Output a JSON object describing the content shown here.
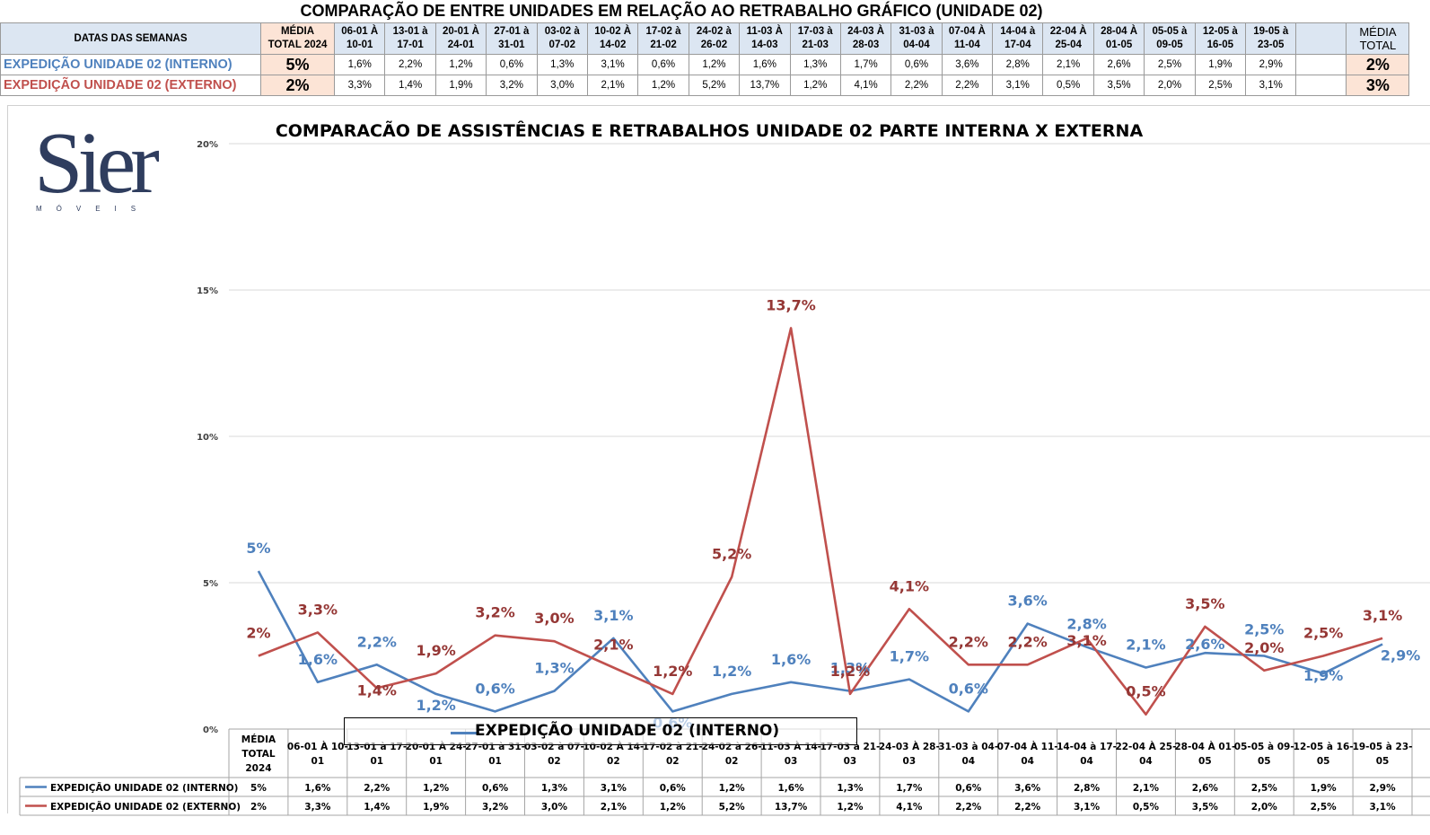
{
  "page_title": "COMPARAÇÃO DE ENTRE UNIDADES EM RELAÇÃO AO RETRABALHO GRÁFICO (UNIDADE 02)",
  "top_table": {
    "header_label": "DATAS DAS SEMANAS",
    "avg_header_lines": [
      "MÉDIA",
      "TOTAL 2024"
    ],
    "weeks": [
      [
        "06-01 À",
        "10-01"
      ],
      [
        "13-01 à",
        "17-01"
      ],
      [
        "20-01 À",
        "24-01"
      ],
      [
        "27-01 à",
        "31-01"
      ],
      [
        "03-02 à",
        "07-02"
      ],
      [
        "10-02 À",
        "14-02"
      ],
      [
        "17-02 à",
        "21-02"
      ],
      [
        "24-02 à",
        "26-02"
      ],
      [
        "11-03 À",
        "14-03"
      ],
      [
        "17-03 à",
        "21-03"
      ],
      [
        "24-03 À",
        "28-03"
      ],
      [
        "31-03 à",
        "04-04"
      ],
      [
        "07-04 À",
        "11-04"
      ],
      [
        "14-04 à",
        "17-04"
      ],
      [
        "22-04 À",
        "25-04"
      ],
      [
        "28-04 À",
        "01-05"
      ],
      [
        "05-05 à",
        "09-05"
      ],
      [
        "12-05 à",
        "16-05"
      ],
      [
        "19-05 à",
        "23-05"
      ]
    ],
    "total_header_lines": [
      "MÉDIA",
      "TOTAL"
    ],
    "rows": [
      {
        "label": "EXPEDIÇÃO UNIDADE 02 (INTERNO)",
        "avg": "5%",
        "values": [
          "1,6%",
          "2,2%",
          "1,2%",
          "0,6%",
          "1,3%",
          "3,1%",
          "0,6%",
          "1,2%",
          "1,6%",
          "1,3%",
          "1,7%",
          "0,6%",
          "3,6%",
          "2,8%",
          "2,1%",
          "2,6%",
          "2,5%",
          "1,9%",
          "2,9%"
        ],
        "total": "2%"
      },
      {
        "label": "EXPEDIÇÃO UNIDADE 02 (EXTERNO)",
        "avg": "2%",
        "values": [
          "3,3%",
          "1,4%",
          "1,9%",
          "3,2%",
          "3,0%",
          "2,1%",
          "1,2%",
          "5,2%",
          "13,7%",
          "1,2%",
          "4,1%",
          "2,2%",
          "2,2%",
          "3,1%",
          "0,5%",
          "3,5%",
          "2,0%",
          "2,5%",
          "3,1%"
        ],
        "total": "3%"
      }
    ]
  },
  "logo": {
    "name": "Sier",
    "subtitle": "MÓVEIS"
  },
  "legend_label": "EXPEDIÇÃO UNIDADE 02 (INTERNO)",
  "chart_data": {
    "type": "line",
    "title": "COMPARACÃO DE ASSISTÊNCIAS E RETRABALHOS UNIDADE 02 PARTE INTERNA X EXTERNA",
    "categories": [
      "MÉDIA TOTAL 2024",
      "06-01 À 10-01",
      "13-01 à 17-01",
      "20-01 À 24-01",
      "27-01 à 31-01",
      "03-02 à 07-02",
      "10-02 À 14-02",
      "17-02 à 21-02",
      "24-02 à 26-02",
      "11-03 À 14-03",
      "17-03 à 21-03",
      "24-03 À 28-03",
      "31-03 à 04-04",
      "07-04 À 11-04",
      "14-04 à 17-04",
      "22-04 À 25-04",
      "28-04 À 01-05",
      "05-05 à 09-05",
      "12-05 à 16-05",
      "19-05 à 23-05"
    ],
    "category_lines": [
      [
        "MÉDIA",
        "TOTAL",
        "2024"
      ],
      [
        "06-01 À 10-",
        "01"
      ],
      [
        "13-01 à 17-",
        "01"
      ],
      [
        "20-01 À 24-",
        "01"
      ],
      [
        "27-01 à 31-",
        "01"
      ],
      [
        "03-02 à 07-",
        "02"
      ],
      [
        "10-02 À 14-",
        "02"
      ],
      [
        "17-02 à 21-",
        "02"
      ],
      [
        "24-02 à 26-",
        "02"
      ],
      [
        "11-03 À 14-",
        "03"
      ],
      [
        "17-03 à 21-",
        "03"
      ],
      [
        "24-03 À 28-",
        "03"
      ],
      [
        "31-03 à 04-",
        "04"
      ],
      [
        "07-04 À 11-",
        "04"
      ],
      [
        "14-04 à 17-",
        "04"
      ],
      [
        "22-04 À 25-",
        "04"
      ],
      [
        "28-04 À 01-",
        "05"
      ],
      [
        "05-05 à 09-",
        "05"
      ],
      [
        "12-05 à 16-",
        "05"
      ],
      [
        "19-05 à 23-",
        "05"
      ]
    ],
    "series": [
      {
        "name": "EXPEDIÇÃO UNIDADE 02 (INTERNO)",
        "color": "#4f81bd",
        "label_color": "#4f81bd",
        "values": [
          5.4,
          1.6,
          2.2,
          1.2,
          0.6,
          1.3,
          3.1,
          0.6,
          1.2,
          1.6,
          1.3,
          1.7,
          0.6,
          3.6,
          2.8,
          2.1,
          2.6,
          2.5,
          1.9,
          2.9
        ],
        "labels": [
          "5%",
          "1,6%",
          "2,2%",
          "1,2%",
          "0,6%",
          "1,3%",
          "3,1%",
          "0,6%",
          "1,2%",
          "1,6%",
          "1,3%",
          "1,7%",
          "0,6%",
          "3,6%",
          "2,8%",
          "2,1%",
          "2,6%",
          "2,5%",
          "1,9%",
          "2,9%"
        ],
        "table_values": [
          "5%",
          "1,6%",
          "2,2%",
          "1,2%",
          "0,6%",
          "1,3%",
          "3,1%",
          "0,6%",
          "1,2%",
          "1,6%",
          "1,3%",
          "1,7%",
          "0,6%",
          "3,6%",
          "2,8%",
          "2,1%",
          "2,6%",
          "2,5%",
          "1,9%",
          "2,9%"
        ]
      },
      {
        "name": "EXPEDIÇÃO UNIDADE 02 (EXTERNO)",
        "color": "#c0504d",
        "label_color": "#953735",
        "values": [
          2.5,
          3.3,
          1.4,
          1.9,
          3.2,
          3.0,
          2.1,
          1.2,
          5.2,
          13.7,
          1.2,
          4.1,
          2.2,
          2.2,
          3.1,
          0.5,
          3.5,
          2.0,
          2.5,
          3.1
        ],
        "labels": [
          "2%",
          "3,3%",
          "1,4%",
          "1,9%",
          "3,2%",
          "3,0%",
          "2,1%",
          "1,2%",
          "5,2%",
          "13,7%",
          "1,2%",
          "4,1%",
          "2,2%",
          "2,2%",
          "3,1%",
          "0,5%",
          "3,5%",
          "2,0%",
          "2,5%",
          "3,1%"
        ],
        "table_values": [
          "2%",
          "3,3%",
          "1,4%",
          "1,9%",
          "3,2%",
          "3,0%",
          "2,1%",
          "1,2%",
          "5,2%",
          "13,7%",
          "1,2%",
          "4,1%",
          "2,2%",
          "2,2%",
          "3,1%",
          "0,5%",
          "3,5%",
          "2,0%",
          "2,5%",
          "3,1%"
        ]
      }
    ],
    "y_ticks": [
      {
        "value": 0,
        "label": "0%"
      },
      {
        "value": 5,
        "label": "5%"
      },
      {
        "value": 10,
        "label": "10%"
      },
      {
        "value": 15,
        "label": "15%"
      },
      {
        "value": 20,
        "label": "20%"
      }
    ],
    "ylim": [
      0,
      20
    ],
    "grid": true,
    "legend": "bottom data table"
  }
}
